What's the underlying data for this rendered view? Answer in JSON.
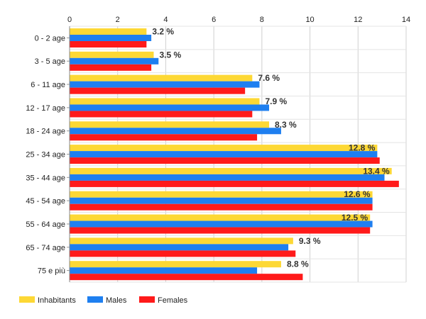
{
  "chart_data": {
    "type": "bar",
    "orientation": "horizontal",
    "categories": [
      "0 - 2 age",
      "3 - 5 age",
      "6 - 11 age",
      "12 - 17 age",
      "18 - 24 age",
      "25 - 34 age",
      "35 - 44 age",
      "45 - 54 age",
      "55 - 64 age",
      "65 - 74 age",
      "75 e più"
    ],
    "series": [
      {
        "name": "Inhabitants",
        "color": "#fdd835",
        "values": [
          3.2,
          3.5,
          7.6,
          7.9,
          8.3,
          12.8,
          13.4,
          12.6,
          12.5,
          9.3,
          8.8
        ]
      },
      {
        "name": "Males",
        "color": "#1e7ff0",
        "values": [
          3.4,
          3.7,
          7.9,
          8.3,
          8.8,
          12.8,
          13.1,
          12.6,
          12.6,
          9.1,
          7.8
        ]
      },
      {
        "name": "Females",
        "color": "#ff1a1a",
        "values": [
          3.2,
          3.4,
          7.3,
          7.6,
          7.8,
          12.9,
          13.7,
          12.6,
          12.5,
          9.4,
          9.7
        ]
      }
    ],
    "data_labels": [
      "3.2 %",
      "3.5 %",
      "7.6 %",
      "7.9 %",
      "8.3 %",
      "12.8 %",
      "13.4 %",
      "12.6 %",
      "12.5 %",
      "9.3 %",
      "8.8 %"
    ],
    "xticks": [
      "0",
      "2",
      "4",
      "6",
      "8",
      "10",
      "12",
      "14"
    ],
    "xlim": [
      0,
      14
    ],
    "grid": true,
    "legend_position": "bottom-left",
    "title": "",
    "xlabel": "",
    "ylabel": ""
  }
}
